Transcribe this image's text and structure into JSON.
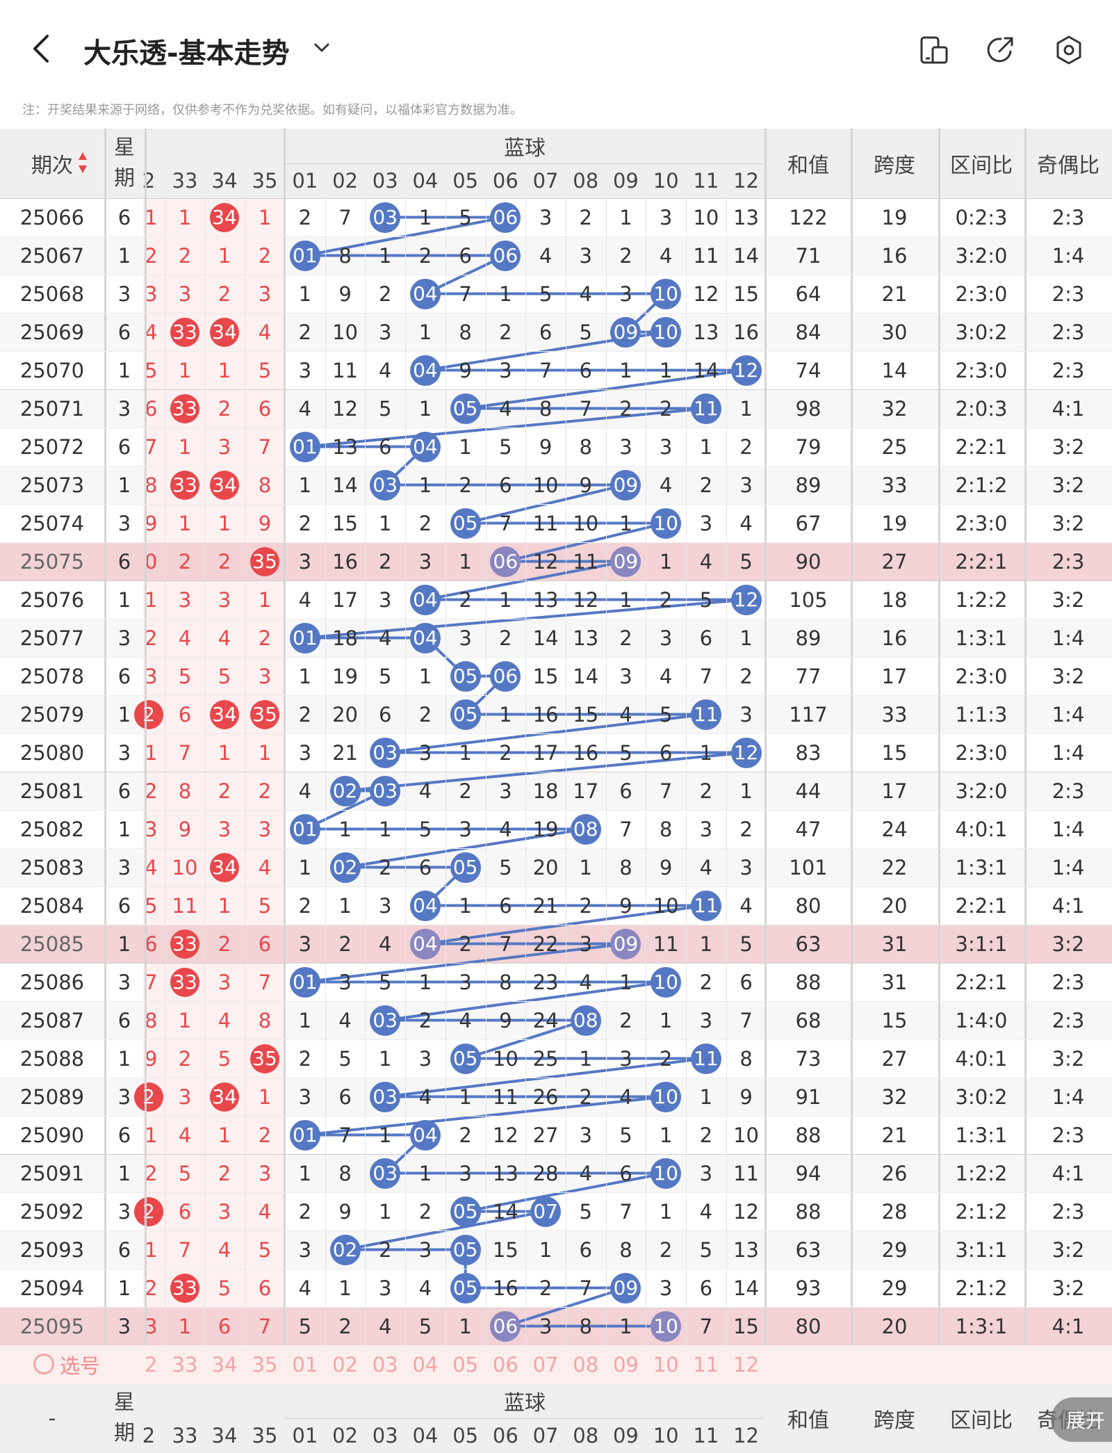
{
  "header": {
    "title": "大乐透-基本走势",
    "icons": [
      "back-icon",
      "chevron-down-icon",
      "phone-mode-icon",
      "share-icon",
      "settings-icon"
    ]
  },
  "note": "注：开奖结果来源于网络，仅供参考不作为兑奖依据。如有疑问，以福体彩官方数据为准。",
  "table": {
    "col_issue": "期次",
    "col_week": "星期",
    "blue_group": "蓝球",
    "col_sum": "和值",
    "col_span": "跨度",
    "col_zone": "区间比",
    "col_oddeven": "奇偶比",
    "red_headers": [
      "2",
      "33",
      "34",
      "35"
    ],
    "blue_headers": [
      "01",
      "02",
      "03",
      "04",
      "05",
      "06",
      "07",
      "08",
      "09",
      "10",
      "11",
      "12"
    ],
    "rows": [
      {
        "issue": "25066",
        "week": "6",
        "red": [
          "1",
          "1",
          "34",
          "1"
        ],
        "blue": [
          "2",
          "7",
          "03",
          "1",
          "5",
          "06",
          "3",
          "2",
          "1",
          "3",
          "10",
          "13"
        ],
        "sum": "122",
        "span": "19",
        "zone": "0:2:3",
        "oe": "2:3"
      },
      {
        "issue": "25067",
        "week": "1",
        "red": [
          "2",
          "2",
          "1",
          "2"
        ],
        "blue": [
          "01",
          "8",
          "1",
          "2",
          "6",
          "06",
          "4",
          "3",
          "2",
          "4",
          "11",
          "14"
        ],
        "sum": "71",
        "span": "16",
        "zone": "3:2:0",
        "oe": "1:4"
      },
      {
        "issue": "25068",
        "week": "3",
        "red": [
          "3",
          "3",
          "2",
          "3"
        ],
        "blue": [
          "1",
          "9",
          "2",
          "04",
          "7",
          "1",
          "5",
          "4",
          "3",
          "10",
          "12",
          "15"
        ],
        "sum": "64",
        "span": "21",
        "zone": "2:3:0",
        "oe": "2:3"
      },
      {
        "issue": "25069",
        "week": "6",
        "red": [
          "4",
          "33",
          "34",
          "4"
        ],
        "blue": [
          "2",
          "10",
          "3",
          "1",
          "8",
          "2",
          "6",
          "5",
          "09",
          "10",
          "13",
          "16"
        ],
        "sum": "84",
        "span": "30",
        "zone": "3:0:2",
        "oe": "2:3"
      },
      {
        "issue": "25070",
        "week": "1",
        "red": [
          "5",
          "1",
          "1",
          "5"
        ],
        "blue": [
          "3",
          "11",
          "4",
          "04",
          "9",
          "3",
          "7",
          "6",
          "1",
          "1",
          "14",
          "12"
        ],
        "sum": "74",
        "span": "14",
        "zone": "2:3:0",
        "oe": "2:3"
      },
      {
        "issue": "25071",
        "week": "3",
        "red": [
          "6",
          "33",
          "2",
          "6"
        ],
        "blue": [
          "4",
          "12",
          "5",
          "1",
          "05",
          "4",
          "8",
          "7",
          "2",
          "2",
          "11",
          "1"
        ],
        "sum": "98",
        "span": "32",
        "zone": "2:0:3",
        "oe": "4:1"
      },
      {
        "issue": "25072",
        "week": "6",
        "red": [
          "7",
          "1",
          "3",
          "7"
        ],
        "blue": [
          "01",
          "13",
          "6",
          "04",
          "1",
          "5",
          "9",
          "8",
          "3",
          "3",
          "1",
          "2"
        ],
        "sum": "79",
        "span": "25",
        "zone": "2:2:1",
        "oe": "3:2"
      },
      {
        "issue": "25073",
        "week": "1",
        "red": [
          "8",
          "33",
          "34",
          "8"
        ],
        "blue": [
          "1",
          "14",
          "03",
          "1",
          "2",
          "6",
          "10",
          "9",
          "09",
          "4",
          "2",
          "3"
        ],
        "sum": "89",
        "span": "33",
        "zone": "2:1:2",
        "oe": "3:2"
      },
      {
        "issue": "25074",
        "week": "3",
        "red": [
          "9",
          "1",
          "1",
          "9"
        ],
        "blue": [
          "2",
          "15",
          "1",
          "2",
          "05",
          "7",
          "11",
          "10",
          "1",
          "10",
          "3",
          "4"
        ],
        "sum": "67",
        "span": "19",
        "zone": "2:3:0",
        "oe": "3:2"
      },
      {
        "issue": "25075",
        "week": "6",
        "red": [
          "0",
          "2",
          "2",
          "35"
        ],
        "blue": [
          "3",
          "16",
          "2",
          "3",
          "1",
          "06",
          "12",
          "11",
          "09",
          "1",
          "4",
          "5"
        ],
        "sum": "90",
        "span": "27",
        "zone": "2:2:1",
        "oe": "2:3"
      },
      {
        "issue": "25076",
        "week": "1",
        "red": [
          "1",
          "3",
          "3",
          "1"
        ],
        "blue": [
          "4",
          "17",
          "3",
          "04",
          "2",
          "1",
          "13",
          "12",
          "1",
          "2",
          "5",
          "12"
        ],
        "sum": "105",
        "span": "18",
        "zone": "1:2:2",
        "oe": "3:2"
      },
      {
        "issue": "25077",
        "week": "3",
        "red": [
          "2",
          "4",
          "4",
          "2"
        ],
        "blue": [
          "01",
          "18",
          "4",
          "04",
          "3",
          "2",
          "14",
          "13",
          "2",
          "3",
          "6",
          "1"
        ],
        "sum": "89",
        "span": "16",
        "zone": "1:3:1",
        "oe": "1:4"
      },
      {
        "issue": "25078",
        "week": "6",
        "red": [
          "3",
          "5",
          "5",
          "3"
        ],
        "blue": [
          "1",
          "19",
          "5",
          "1",
          "05",
          "06",
          "15",
          "14",
          "3",
          "4",
          "7",
          "2"
        ],
        "sum": "77",
        "span": "17",
        "zone": "2:3:0",
        "oe": "3:2"
      },
      {
        "issue": "25079",
        "week": "1",
        "red": [
          "2",
          "6",
          "34",
          "35"
        ],
        "blue": [
          "2",
          "20",
          "6",
          "2",
          "05",
          "1",
          "16",
          "15",
          "4",
          "5",
          "11",
          "3"
        ],
        "sum": "117",
        "span": "33",
        "zone": "1:1:3",
        "oe": "1:4"
      },
      {
        "issue": "25080",
        "week": "3",
        "red": [
          "1",
          "7",
          "1",
          "1"
        ],
        "blue": [
          "3",
          "21",
          "03",
          "3",
          "1",
          "2",
          "17",
          "16",
          "5",
          "6",
          "1",
          "12"
        ],
        "sum": "83",
        "span": "15",
        "zone": "2:3:0",
        "oe": "1:4"
      },
      {
        "issue": "25081",
        "week": "6",
        "red": [
          "2",
          "8",
          "2",
          "2"
        ],
        "blue": [
          "4",
          "02",
          "03",
          "4",
          "2",
          "3",
          "18",
          "17",
          "6",
          "7",
          "2",
          "1"
        ],
        "sum": "44",
        "span": "17",
        "zone": "3:2:0",
        "oe": "2:3"
      },
      {
        "issue": "25082",
        "week": "1",
        "red": [
          "3",
          "9",
          "3",
          "3"
        ],
        "blue": [
          "01",
          "1",
          "1",
          "5",
          "3",
          "4",
          "19",
          "08",
          "7",
          "8",
          "3",
          "2"
        ],
        "sum": "47",
        "span": "24",
        "zone": "4:0:1",
        "oe": "1:4"
      },
      {
        "issue": "25083",
        "week": "3",
        "red": [
          "4",
          "10",
          "34",
          "4"
        ],
        "blue": [
          "1",
          "02",
          "2",
          "6",
          "05",
          "5",
          "20",
          "1",
          "8",
          "9",
          "4",
          "3"
        ],
        "sum": "101",
        "span": "22",
        "zone": "1:3:1",
        "oe": "1:4"
      },
      {
        "issue": "25084",
        "week": "6",
        "red": [
          "5",
          "11",
          "1",
          "5"
        ],
        "blue": [
          "2",
          "1",
          "3",
          "04",
          "1",
          "6",
          "21",
          "2",
          "9",
          "10",
          "11",
          "4"
        ],
        "sum": "80",
        "span": "20",
        "zone": "2:2:1",
        "oe": "4:1"
      },
      {
        "issue": "25085",
        "week": "1",
        "red": [
          "6",
          "33",
          "2",
          "6"
        ],
        "blue": [
          "3",
          "2",
          "4",
          "04",
          "2",
          "7",
          "22",
          "3",
          "09",
          "11",
          "1",
          "5"
        ],
        "sum": "63",
        "span": "31",
        "zone": "3:1:1",
        "oe": "3:2"
      },
      {
        "issue": "25086",
        "week": "3",
        "red": [
          "7",
          "33",
          "3",
          "7"
        ],
        "blue": [
          "01",
          "3",
          "5",
          "1",
          "3",
          "8",
          "23",
          "4",
          "1",
          "10",
          "2",
          "6"
        ],
        "sum": "88",
        "span": "31",
        "zone": "2:2:1",
        "oe": "2:3"
      },
      {
        "issue": "25087",
        "week": "6",
        "red": [
          "8",
          "1",
          "4",
          "8"
        ],
        "blue": [
          "1",
          "4",
          "03",
          "2",
          "4",
          "9",
          "24",
          "08",
          "2",
          "1",
          "3",
          "7"
        ],
        "sum": "68",
        "span": "15",
        "zone": "1:4:0",
        "oe": "2:3"
      },
      {
        "issue": "25088",
        "week": "1",
        "red": [
          "9",
          "2",
          "5",
          "35"
        ],
        "blue": [
          "2",
          "5",
          "1",
          "3",
          "05",
          "10",
          "25",
          "1",
          "3",
          "2",
          "11",
          "8"
        ],
        "sum": "73",
        "span": "27",
        "zone": "4:0:1",
        "oe": "3:2"
      },
      {
        "issue": "25089",
        "week": "3",
        "red": [
          "2",
          "3",
          "34",
          "1"
        ],
        "blue": [
          "3",
          "6",
          "03",
          "4",
          "1",
          "11",
          "26",
          "2",
          "4",
          "10",
          "1",
          "9"
        ],
        "sum": "91",
        "span": "32",
        "zone": "3:0:2",
        "oe": "1:4"
      },
      {
        "issue": "25090",
        "week": "6",
        "red": [
          "1",
          "4",
          "1",
          "2"
        ],
        "blue": [
          "01",
          "7",
          "1",
          "04",
          "2",
          "12",
          "27",
          "3",
          "5",
          "1",
          "2",
          "10"
        ],
        "sum": "88",
        "span": "21",
        "zone": "1:3:1",
        "oe": "2:3"
      },
      {
        "issue": "25091",
        "week": "1",
        "red": [
          "2",
          "5",
          "2",
          "3"
        ],
        "blue": [
          "1",
          "8",
          "03",
          "1",
          "3",
          "13",
          "28",
          "4",
          "6",
          "10",
          "3",
          "11"
        ],
        "sum": "94",
        "span": "26",
        "zone": "1:2:2",
        "oe": "4:1"
      },
      {
        "issue": "25092",
        "week": "3",
        "red": [
          "2",
          "6",
          "3",
          "4"
        ],
        "blue": [
          "2",
          "9",
          "1",
          "2",
          "05",
          "14",
          "07",
          "5",
          "7",
          "1",
          "4",
          "12"
        ],
        "sum": "88",
        "span": "28",
        "zone": "2:1:2",
        "oe": "2:3"
      },
      {
        "issue": "25093",
        "week": "6",
        "red": [
          "1",
          "7",
          "4",
          "5"
        ],
        "blue": [
          "3",
          "02",
          "2",
          "3",
          "05",
          "15",
          "1",
          "6",
          "8",
          "2",
          "5",
          "13"
        ],
        "sum": "63",
        "span": "29",
        "zone": "3:1:1",
        "oe": "3:2"
      },
      {
        "issue": "25094",
        "week": "1",
        "red": [
          "2",
          "33",
          "5",
          "6"
        ],
        "blue": [
          "4",
          "1",
          "3",
          "4",
          "05",
          "16",
          "2",
          "7",
          "09",
          "3",
          "6",
          "14"
        ],
        "sum": "93",
        "span": "29",
        "zone": "2:1:2",
        "oe": "3:2"
      },
      {
        "issue": "25095",
        "week": "3",
        "red": [
          "3",
          "1",
          "6",
          "7"
        ],
        "blue": [
          "5",
          "2",
          "4",
          "5",
          "1",
          "06",
          "3",
          "8",
          "1",
          "10",
          "7",
          "15"
        ],
        "sum": "80",
        "span": "20",
        "zone": "1:3:1",
        "oe": "4:1"
      }
    ],
    "highlight_rows": [
      "25075",
      "25085",
      "25095"
    ],
    "red_ball_hits": [
      [
        0,
        2
      ],
      [
        3,
        1
      ],
      [
        3,
        2
      ],
      [
        5,
        1
      ],
      [
        7,
        1
      ],
      [
        7,
        2
      ],
      [
        9,
        3
      ],
      [
        13,
        0
      ],
      [
        13,
        2
      ],
      [
        13,
        3
      ],
      [
        17,
        2
      ],
      [
        19,
        1
      ],
      [
        20,
        1
      ],
      [
        22,
        3
      ],
      [
        23,
        0
      ],
      [
        23,
        2
      ],
      [
        26,
        0
      ],
      [
        28,
        1
      ]
    ],
    "blue_ball_hits": [
      [
        2,
        5
      ],
      [
        0,
        5
      ],
      [
        3,
        9
      ],
      [
        8,
        9
      ],
      [
        3,
        11
      ],
      [
        4,
        10
      ],
      [
        0,
        3
      ],
      [
        2,
        8
      ],
      [
        4,
        9
      ],
      [
        5,
        8
      ],
      [
        3,
        11
      ],
      [
        0,
        3
      ],
      [
        4,
        5
      ],
      [
        4,
        10
      ],
      [
        2,
        11
      ],
      [
        1,
        2
      ],
      [
        0,
        7
      ],
      [
        1,
        4
      ],
      [
        3,
        10
      ],
      [
        3,
        8
      ],
      [
        0,
        9
      ],
      [
        2,
        7
      ],
      [
        4,
        10
      ],
      [
        2,
        9
      ],
      [
        0,
        3
      ],
      [
        2,
        9
      ],
      [
        4,
        6
      ],
      [
        1,
        4
      ],
      [
        4,
        8
      ],
      [
        5,
        9
      ]
    ],
    "select_row": {
      "label": "选号",
      "red": [
        "2",
        "33",
        "34",
        "35"
      ],
      "blue": [
        "01",
        "02",
        "03",
        "04",
        "05",
        "06",
        "07",
        "08",
        "09",
        "10",
        "11",
        "12"
      ]
    },
    "footer_issue": "-",
    "expand_label": "展开"
  },
  "colors": {
    "red": "#e8474b",
    "blue": "#5578c4",
    "blue_dim": "#8a86c0",
    "line": "#5578c4",
    "highlight": "#f3d3d6",
    "header_bg": "#eeeeee"
  }
}
